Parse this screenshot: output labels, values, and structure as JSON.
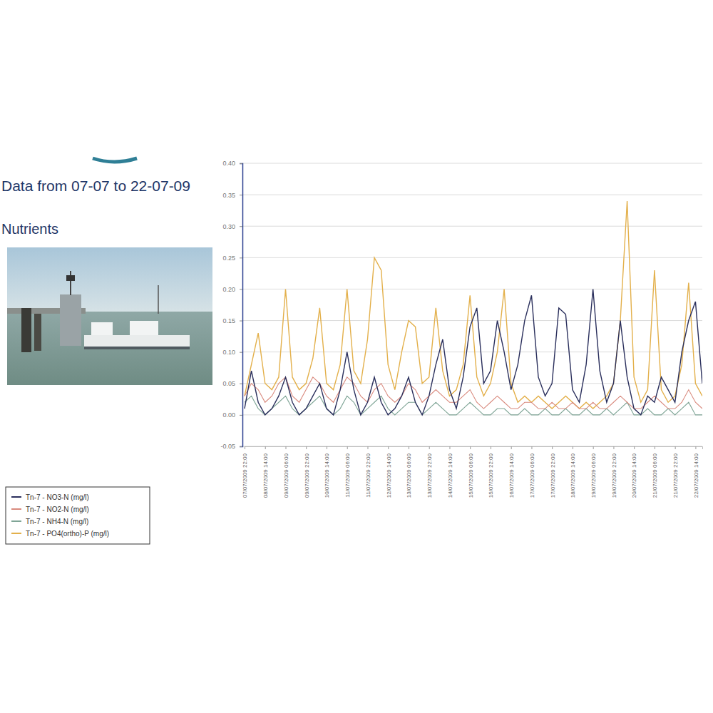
{
  "chart_data": {
    "type": "line",
    "title": "Data from 07-07 to 22-07-09",
    "subtitle": "Nutrients",
    "categories": [
      "07/07/2009 22:00",
      null,
      null,
      "08/07/2009 14:00",
      null,
      null,
      "09/07/2009 06:00",
      null,
      null,
      "09/07/2009 22:00",
      null,
      null,
      "10/07/2009 14:00",
      null,
      null,
      "11/07/2009 06:00",
      null,
      null,
      "11/07/2009 22:00",
      null,
      null,
      "12/07/2009 14:00",
      null,
      null,
      "13/07/2009 06:00",
      null,
      null,
      "13/07/2009 22:00",
      null,
      null,
      "14/07/2009 14:00",
      null,
      null,
      "15/07/2009 06:00",
      null,
      null,
      "15/07/2009 22:00",
      null,
      null,
      "16/07/2009 14:00",
      null,
      null,
      "17/07/2009 06:00",
      null,
      null,
      "17/07/2009 22:00",
      null,
      null,
      "18/07/2009 14:00",
      null,
      null,
      "19/07/2009 06:00",
      null,
      null,
      "19/07/2009 22:00",
      null,
      null,
      "20/07/2009 14:00",
      null,
      null,
      "21/07/2009 06:00",
      null,
      null,
      "21/07/2009 22:00",
      null,
      null,
      "22/07/2009 14:00",
      null
    ],
    "series": [
      {
        "name": "Tn-7 - NO3-N (mg/l)",
        "color": "#2a2f5c",
        "values": [
          0.01,
          0.07,
          0.02,
          0.0,
          0.01,
          0.03,
          0.06,
          0.02,
          0.0,
          0.01,
          0.03,
          0.05,
          0.01,
          0.0,
          0.04,
          0.1,
          0.04,
          0.0,
          0.02,
          0.06,
          0.02,
          0.0,
          0.01,
          0.03,
          0.06,
          0.02,
          0.0,
          0.03,
          0.08,
          0.12,
          0.04,
          0.01,
          0.06,
          0.14,
          0.17,
          0.05,
          0.07,
          0.15,
          0.1,
          0.04,
          0.08,
          0.15,
          0.19,
          0.06,
          0.03,
          0.05,
          0.17,
          0.16,
          0.04,
          0.02,
          0.08,
          0.2,
          0.07,
          0.02,
          0.05,
          0.15,
          0.06,
          0.01,
          0.0,
          0.03,
          0.02,
          0.06,
          0.04,
          0.02,
          0.1,
          0.15,
          0.18,
          0.05
        ]
      },
      {
        "name": "Tn-7 - NO2-N (mg/l)",
        "color": "#d98a7e",
        "values": [
          0.03,
          0.05,
          0.04,
          0.02,
          0.03,
          0.05,
          0.06,
          0.03,
          0.02,
          0.04,
          0.06,
          0.05,
          0.03,
          0.02,
          0.04,
          0.06,
          0.05,
          0.03,
          0.02,
          0.04,
          0.05,
          0.03,
          0.02,
          0.03,
          0.05,
          0.04,
          0.02,
          0.03,
          0.04,
          0.03,
          0.02,
          0.02,
          0.03,
          0.04,
          0.02,
          0.01,
          0.02,
          0.03,
          0.02,
          0.01,
          0.01,
          0.02,
          0.02,
          0.01,
          0.01,
          0.02,
          0.01,
          0.01,
          0.02,
          0.01,
          0.01,
          0.02,
          0.01,
          0.01,
          0.02,
          0.03,
          0.02,
          0.01,
          0.01,
          0.02,
          0.03,
          0.02,
          0.01,
          0.01,
          0.02,
          0.04,
          0.02,
          0.01
        ]
      },
      {
        "name": "Tn-7 - NH4-N (mg/l)",
        "color": "#7fa596",
        "values": [
          0.02,
          0.03,
          0.01,
          0.0,
          0.01,
          0.02,
          0.03,
          0.01,
          0.0,
          0.01,
          0.02,
          0.03,
          0.01,
          0.0,
          0.01,
          0.03,
          0.02,
          0.0,
          0.01,
          0.02,
          0.03,
          0.01,
          0.0,
          0.01,
          0.02,
          0.02,
          0.0,
          0.01,
          0.02,
          0.01,
          0.0,
          0.0,
          0.01,
          0.02,
          0.01,
          0.0,
          0.0,
          0.01,
          0.01,
          0.0,
          0.0,
          0.01,
          0.0,
          0.0,
          0.01,
          0.0,
          0.0,
          0.01,
          0.0,
          0.0,
          0.01,
          0.0,
          0.0,
          0.01,
          0.0,
          0.01,
          0.02,
          0.0,
          0.0,
          0.01,
          0.0,
          0.0,
          0.01,
          0.0,
          0.01,
          0.02,
          0.0,
          0.0
        ]
      },
      {
        "name": "Tn-7 - PO4(ortho)-P (mg/l)",
        "color": "#e3b04b",
        "values": [
          0.03,
          0.08,
          0.13,
          0.05,
          0.04,
          0.06,
          0.2,
          0.06,
          0.04,
          0.05,
          0.09,
          0.17,
          0.05,
          0.04,
          0.08,
          0.2,
          0.07,
          0.05,
          0.12,
          0.25,
          0.23,
          0.08,
          0.04,
          0.1,
          0.15,
          0.14,
          0.05,
          0.06,
          0.17,
          0.07,
          0.03,
          0.04,
          0.08,
          0.19,
          0.06,
          0.03,
          0.05,
          0.1,
          0.2,
          0.05,
          0.02,
          0.03,
          0.02,
          0.03,
          0.02,
          0.01,
          0.02,
          0.03,
          0.02,
          0.01,
          0.02,
          0.01,
          0.02,
          0.03,
          0.05,
          0.15,
          0.34,
          0.06,
          0.02,
          0.04,
          0.23,
          0.04,
          0.02,
          0.03,
          0.08,
          0.21,
          0.05,
          0.03
        ]
      }
    ],
    "ylim": [
      -0.05,
      0.4
    ],
    "yticks": [
      {
        "value": 0.4,
        "label": "0.40"
      },
      0.35,
      {
        "value": 0.3,
        "label": "0.30"
      },
      0.25,
      {
        "value": 0.2,
        "label": "0.20"
      },
      0.15,
      {
        "value": 0.1,
        "label": "0.10"
      },
      0.05,
      {
        "value": 0,
        "label": "0.00"
      },
      -0.05
    ],
    "grid": true,
    "legend": "bottom-left"
  }
}
